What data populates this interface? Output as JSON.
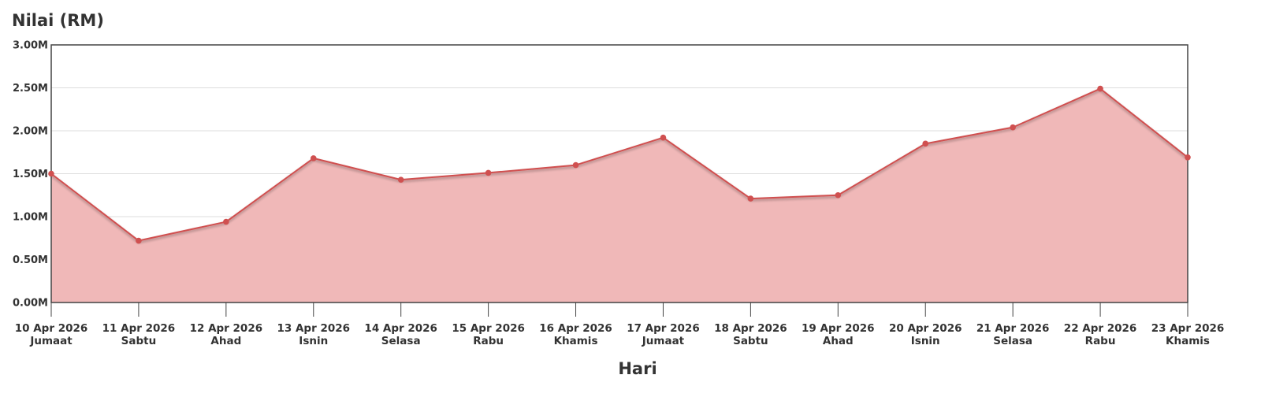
{
  "chart_data": {
    "type": "area",
    "title": "",
    "ylabel": "Nilai (RM)",
    "xlabel": "Hari",
    "x": [
      {
        "date": "10 Apr 2026",
        "day": "Jumaat"
      },
      {
        "date": "11 Apr 2026",
        "day": "Sabtu"
      },
      {
        "date": "12 Apr 2026",
        "day": "Ahad"
      },
      {
        "date": "13 Apr 2026",
        "day": "Isnin"
      },
      {
        "date": "14 Apr 2026",
        "day": "Selasa"
      },
      {
        "date": "15 Apr 2026",
        "day": "Rabu"
      },
      {
        "date": "16 Apr 2026",
        "day": "Khamis"
      },
      {
        "date": "17 Apr 2026",
        "day": "Jumaat"
      },
      {
        "date": "18 Apr 2026",
        "day": "Sabtu"
      },
      {
        "date": "19 Apr 2026",
        "day": "Ahad"
      },
      {
        "date": "20 Apr 2026",
        "day": "Isnin"
      },
      {
        "date": "21 Apr 2026",
        "day": "Selasa"
      },
      {
        "date": "22 Apr 2026",
        "day": "Rabu"
      },
      {
        "date": "23 Apr 2026",
        "day": "Khamis"
      }
    ],
    "series": [
      {
        "values": [
          1500000,
          720000,
          940000,
          1680000,
          1430000,
          1510000,
          1600000,
          1920000,
          1210000,
          1250000,
          1850000,
          2040000,
          2490000,
          1690000
        ]
      }
    ],
    "ylim": [
      0,
      3000000
    ],
    "yticks": [
      0,
      500000,
      1000000,
      1500000,
      2000000,
      2500000,
      3000000
    ],
    "ytick_labels": [
      "0.00M",
      "0.50M",
      "1.00M",
      "1.50M",
      "2.00M",
      "2.50M",
      "3.00M"
    ],
    "grid": true,
    "legend": "none",
    "colors": {
      "line": "#d05050",
      "fill": "#f0b8b8",
      "marker": "#d05050",
      "grid": "#dddddd",
      "axis": "#444444",
      "text": "#333333"
    }
  }
}
